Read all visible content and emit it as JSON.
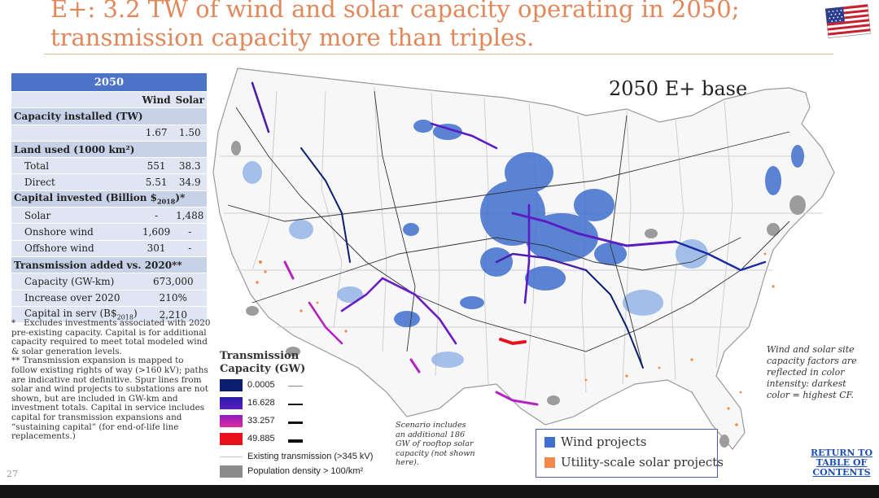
{
  "title": {
    "line1": "E+: 3.2 TW of wind and solar capacity operating in 2050;",
    "line2": "transmission capacity more than triples."
  },
  "table": {
    "year": "2050",
    "col_wind": "Wind",
    "col_solar": "Solar",
    "capacity_installed_label": "Capacity installed (TW)",
    "capacity_wind": "1.67",
    "capacity_solar": "1.50",
    "land_used_label": "Land used (1000 km²)",
    "land_total_label": "Total",
    "land_total_wind": "551",
    "land_total_solar": "38.3",
    "land_direct_label": "Direct",
    "land_direct_wind": "5.51",
    "land_direct_solar": "34.9",
    "capital_label_a": "Capital invested (Billion $",
    "capital_label_sub": "2018",
    "capital_label_b": ")*",
    "solar_label": "Solar",
    "solar_wind": "-",
    "solar_solar": "1,488",
    "onshore_label": "Onshore wind",
    "onshore_wind": "1,609",
    "onshore_solar": "-",
    "offshore_label": "Offshore wind",
    "offshore_wind": "301",
    "offshore_solar": "-",
    "transmission_label": "Transmission added vs. 2020**",
    "tx_capacity_label": "Capacity (GW-km)",
    "tx_capacity_value": "673,000",
    "tx_increase_label": "Increase over 2020",
    "tx_increase_value": "210%",
    "tx_capital_label_a": "Capital in serv (B$",
    "tx_capital_label_sub": "2018",
    "tx_capital_label_b": ")",
    "tx_capital_value": "2,210"
  },
  "notes": {
    "note1_mark": "*",
    "note1": "Excludes investments associated with 2020 pre-existing capacity. Capital is for additional capacity required to meet total modeled wind & solar generation levels.",
    "note2_mark": "**",
    "note2": "Transmission expansion is mapped to follow existing rights of way (>160 kV); paths are indicative not definitive. Spur lines from solar and wind projects to substations are not shown, but are included in GW-km and investment totals. Capital in service includes capital for transmission expansions and “sustaining capital” (for end-of-life line replacements.)"
  },
  "page_number": "27",
  "map": {
    "title": "2050 E+ base"
  },
  "legend": {
    "title_line1": "Transmission",
    "title_line2": "Capacity (GW)",
    "items": [
      {
        "label": "0.0005",
        "color": "#0b1f6e"
      },
      {
        "label": "16.628",
        "color": "#5a1cc4"
      },
      {
        "label": "33.257",
        "color": "#b522c0"
      },
      {
        "label": "49.885",
        "color": "#e8101a"
      }
    ],
    "existing_label": "Existing transmission (>345 kV)",
    "population_label": "Population density > 100/km²"
  },
  "scenario_note": "Scenario includes an additional 186 GW of rooftop solar capacity (not shown here).",
  "cf_note": "Wind and solar site capacity factors are reflected in color intensity: darkest color = highest CF.",
  "project_legend": {
    "wind_label": "Wind projects",
    "solar_label": "Utility-scale solar projects",
    "wind_color": "#3f6fcf",
    "solar_color": "#f0894a"
  },
  "return_link": {
    "line1": "RETURN TO",
    "line2": "TABLE OF",
    "line3": "CONTENTS"
  },
  "colors": {
    "title": "#e2875a",
    "table_header": "#4b74c9",
    "table_section": "#c7d1e7",
    "table_row": "#dfe5f2",
    "link": "#1f4fb4"
  }
}
